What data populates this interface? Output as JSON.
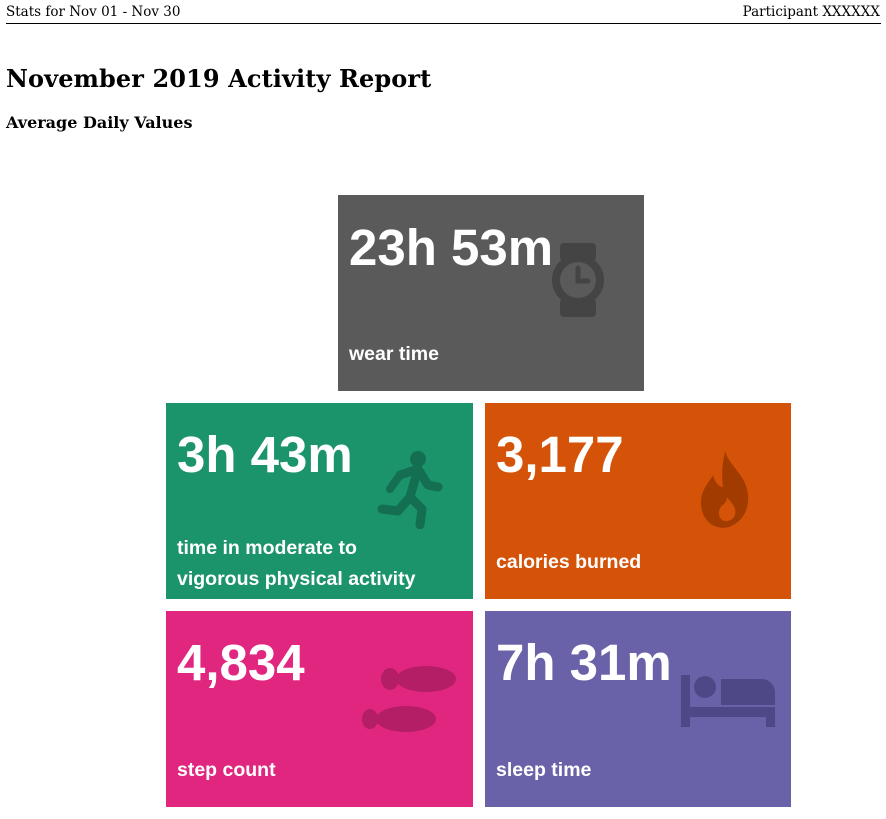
{
  "header": {
    "left": "Stats for Nov 01 - Nov 30",
    "right": "Participant XXXXXX"
  },
  "report": {
    "title": "November 2019 Activity Report",
    "subtitle": "Average Daily Values"
  },
  "tiles": {
    "wear": {
      "value": "23h 53m",
      "label": "wear time",
      "color": "#5a5a5a",
      "icon": "watch-icon"
    },
    "mvpa": {
      "value": "3h 43m",
      "label_line1": "time in moderate to",
      "label_line2": "vigorous physical activity",
      "color": "#1b946c",
      "icon": "running-person-icon"
    },
    "calories": {
      "value": "3,177",
      "label": "calories burned",
      "color": "#d45308",
      "icon": "flame-icon"
    },
    "steps": {
      "value": "4,834",
      "label": "step count",
      "color": "#e1267f",
      "icon": "footprints-icon"
    },
    "sleep": {
      "value": "7h 31m",
      "label": "sleep time",
      "color": "#6a62a9",
      "icon": "bed-icon"
    }
  }
}
